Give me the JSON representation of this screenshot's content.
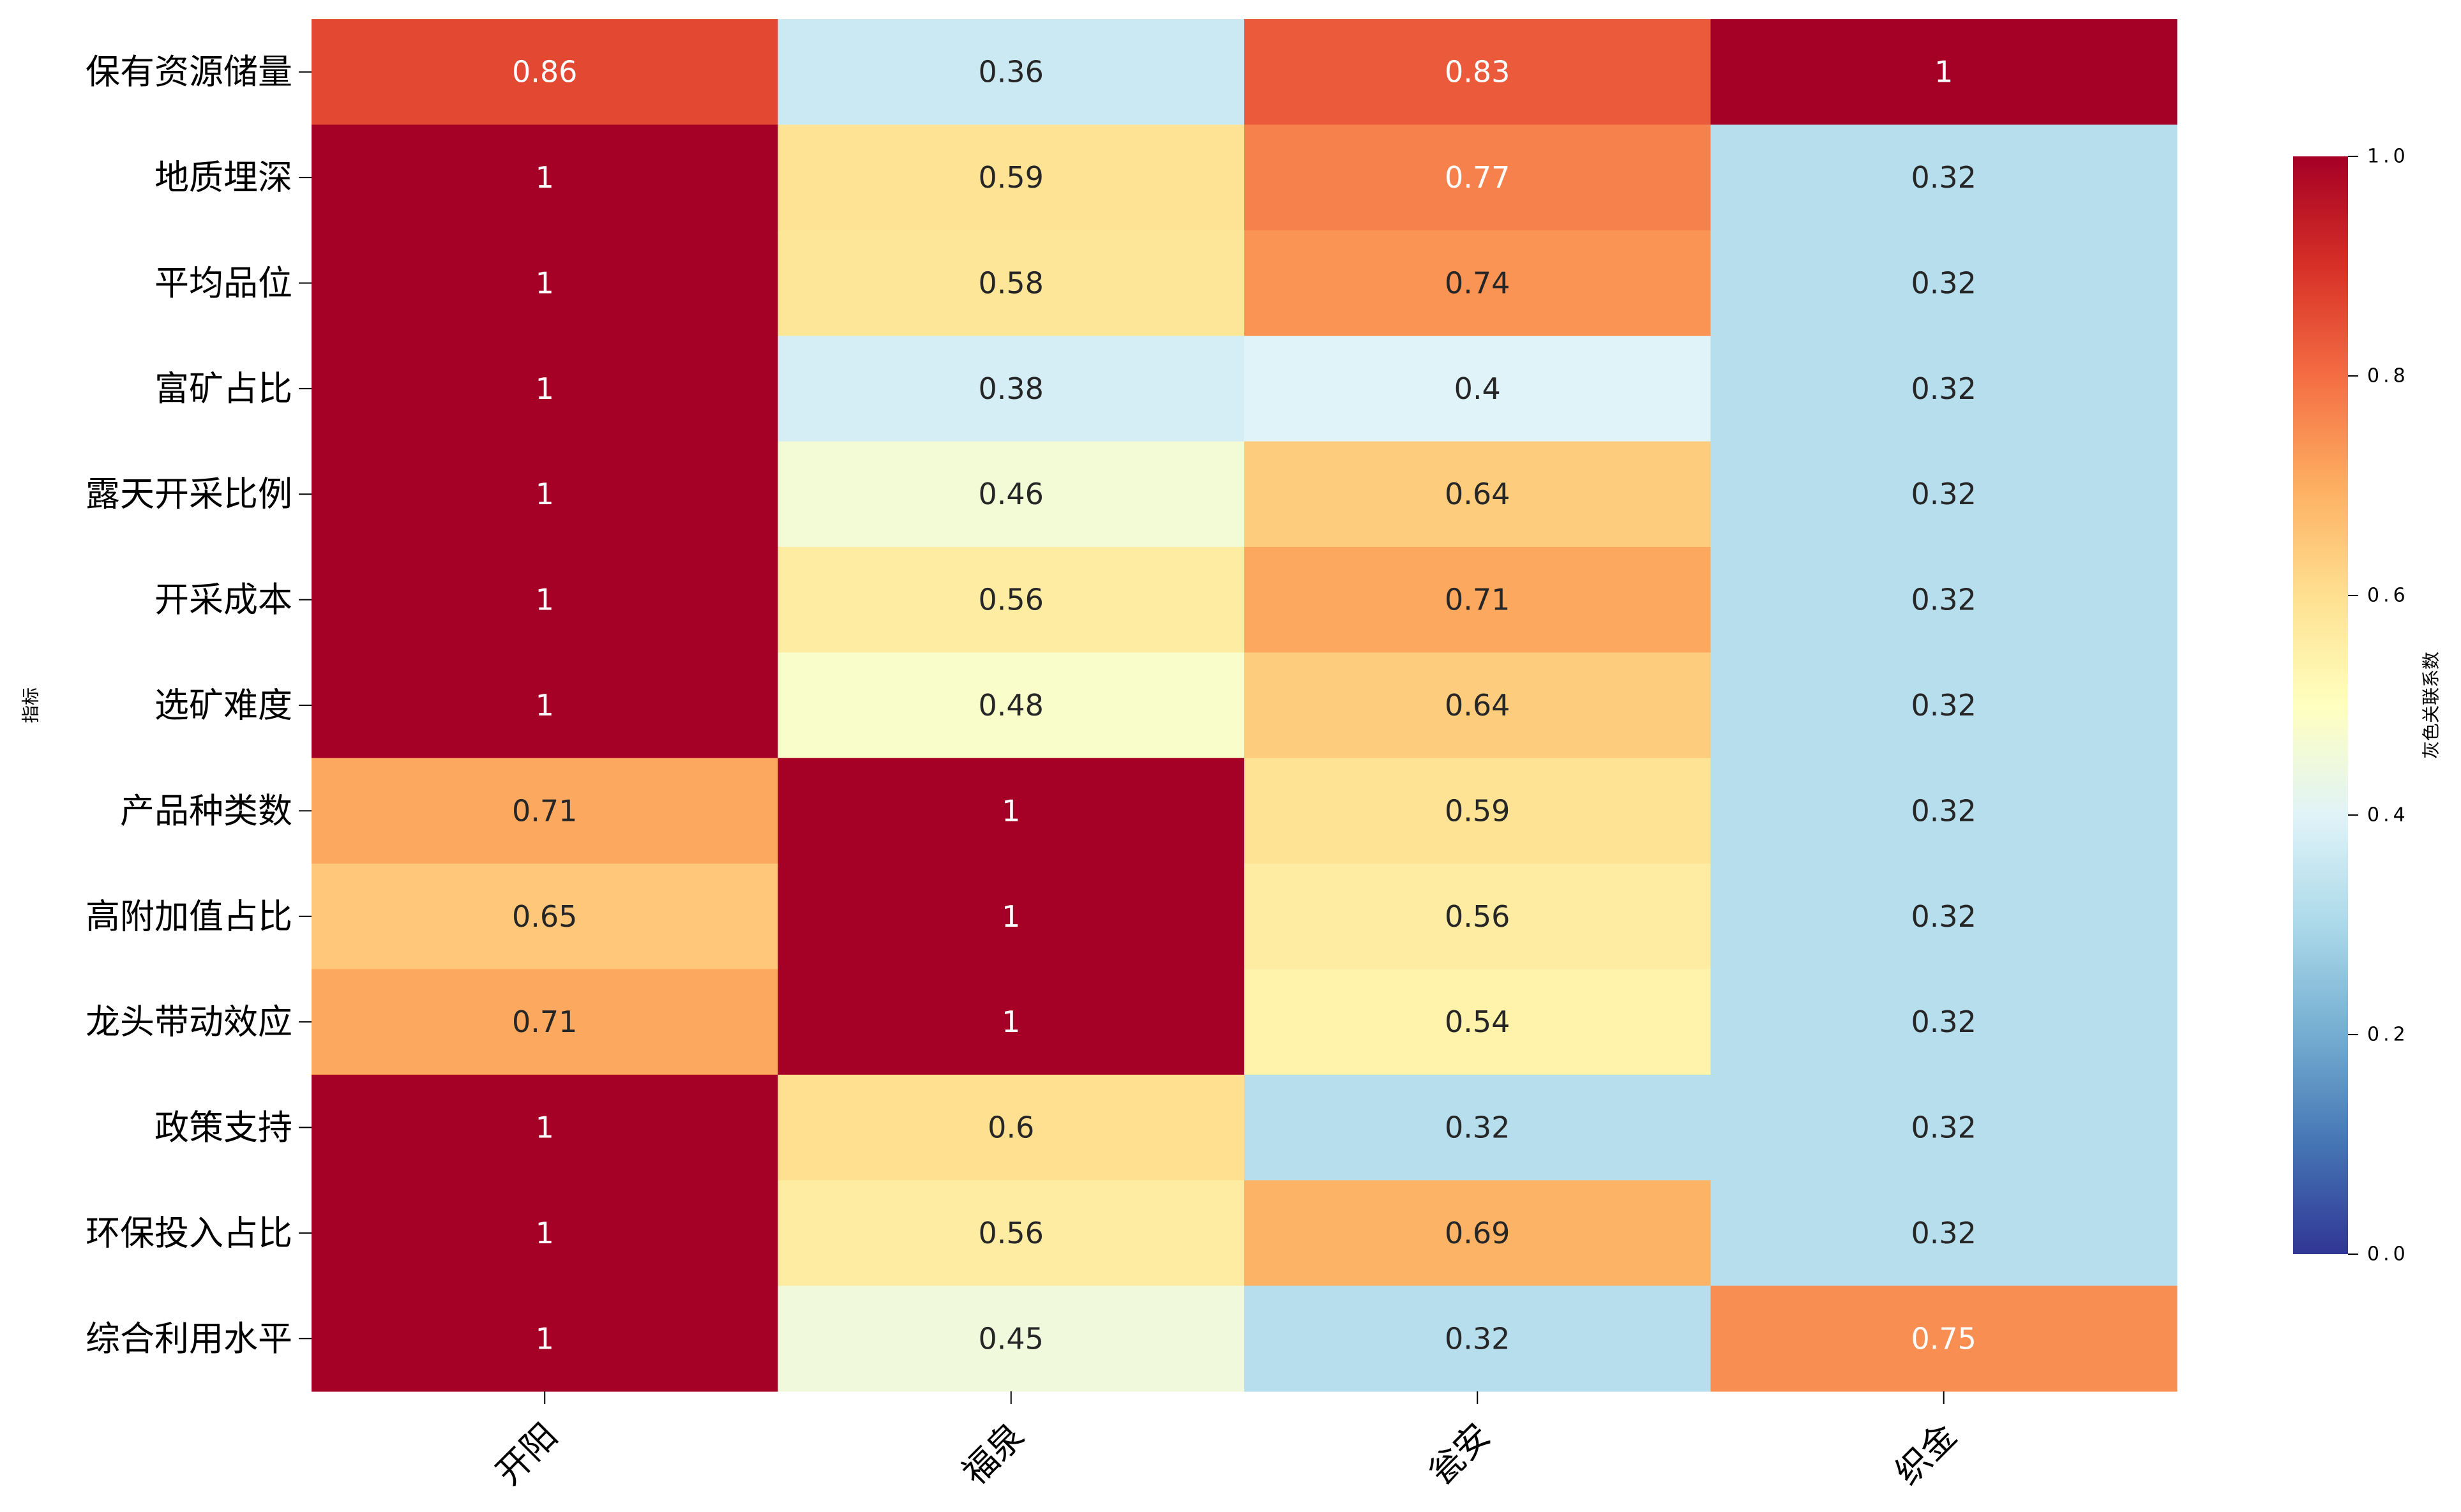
{
  "chart_data": {
    "type": "heatmap",
    "title": "",
    "xlabel": "",
    "ylabel": "指标",
    "columns": [
      "开阳",
      "福泉",
      "瓮安",
      "织金"
    ],
    "rows": [
      "保有资源储量",
      "地质埋深",
      "平均品位",
      "富矿占比",
      "露天开采比例",
      "开采成本",
      "选矿难度",
      "产品种类数",
      "高附加值占比",
      "龙头带动效应",
      "政策支持",
      "环保投入占比",
      "综合利用水平"
    ],
    "values": [
      [
        0.86,
        0.36,
        0.83,
        1
      ],
      [
        1,
        0.59,
        0.77,
        0.32
      ],
      [
        1,
        0.58,
        0.74,
        0.32
      ],
      [
        1,
        0.38,
        0.4,
        0.32
      ],
      [
        1,
        0.46,
        0.64,
        0.32
      ],
      [
        1,
        0.56,
        0.71,
        0.32
      ],
      [
        1,
        0.48,
        0.64,
        0.32
      ],
      [
        0.71,
        1,
        0.59,
        0.32
      ],
      [
        0.65,
        1,
        0.56,
        0.32
      ],
      [
        0.71,
        1,
        0.54,
        0.32
      ],
      [
        1,
        0.6,
        0.32,
        0.32
      ],
      [
        1,
        0.56,
        0.69,
        0.32
      ],
      [
        1,
        0.45,
        0.32,
        0.75
      ]
    ],
    "colormap": "RdYlBu_r",
    "vmin": 0.0,
    "vmax": 1.0,
    "colorbar": {
      "label": "灰色关联系数",
      "ticks": [
        0.0,
        0.2,
        0.4,
        0.6,
        0.8,
        1.0
      ],
      "tick_labels": [
        "0.0",
        "0.2",
        "0.4",
        "0.6",
        "0.8",
        "1.0"
      ],
      "placement": "right"
    },
    "colormap_stops": [
      "#313695",
      "#4575b4",
      "#74add1",
      "#abd9e9",
      "#e0f3f8",
      "#ffffbf",
      "#fee090",
      "#fdae61",
      "#f46d43",
      "#d73027",
      "#a50026"
    ],
    "annot_colors": {
      "dark": "#262626",
      "light": "#ffffff"
    }
  }
}
